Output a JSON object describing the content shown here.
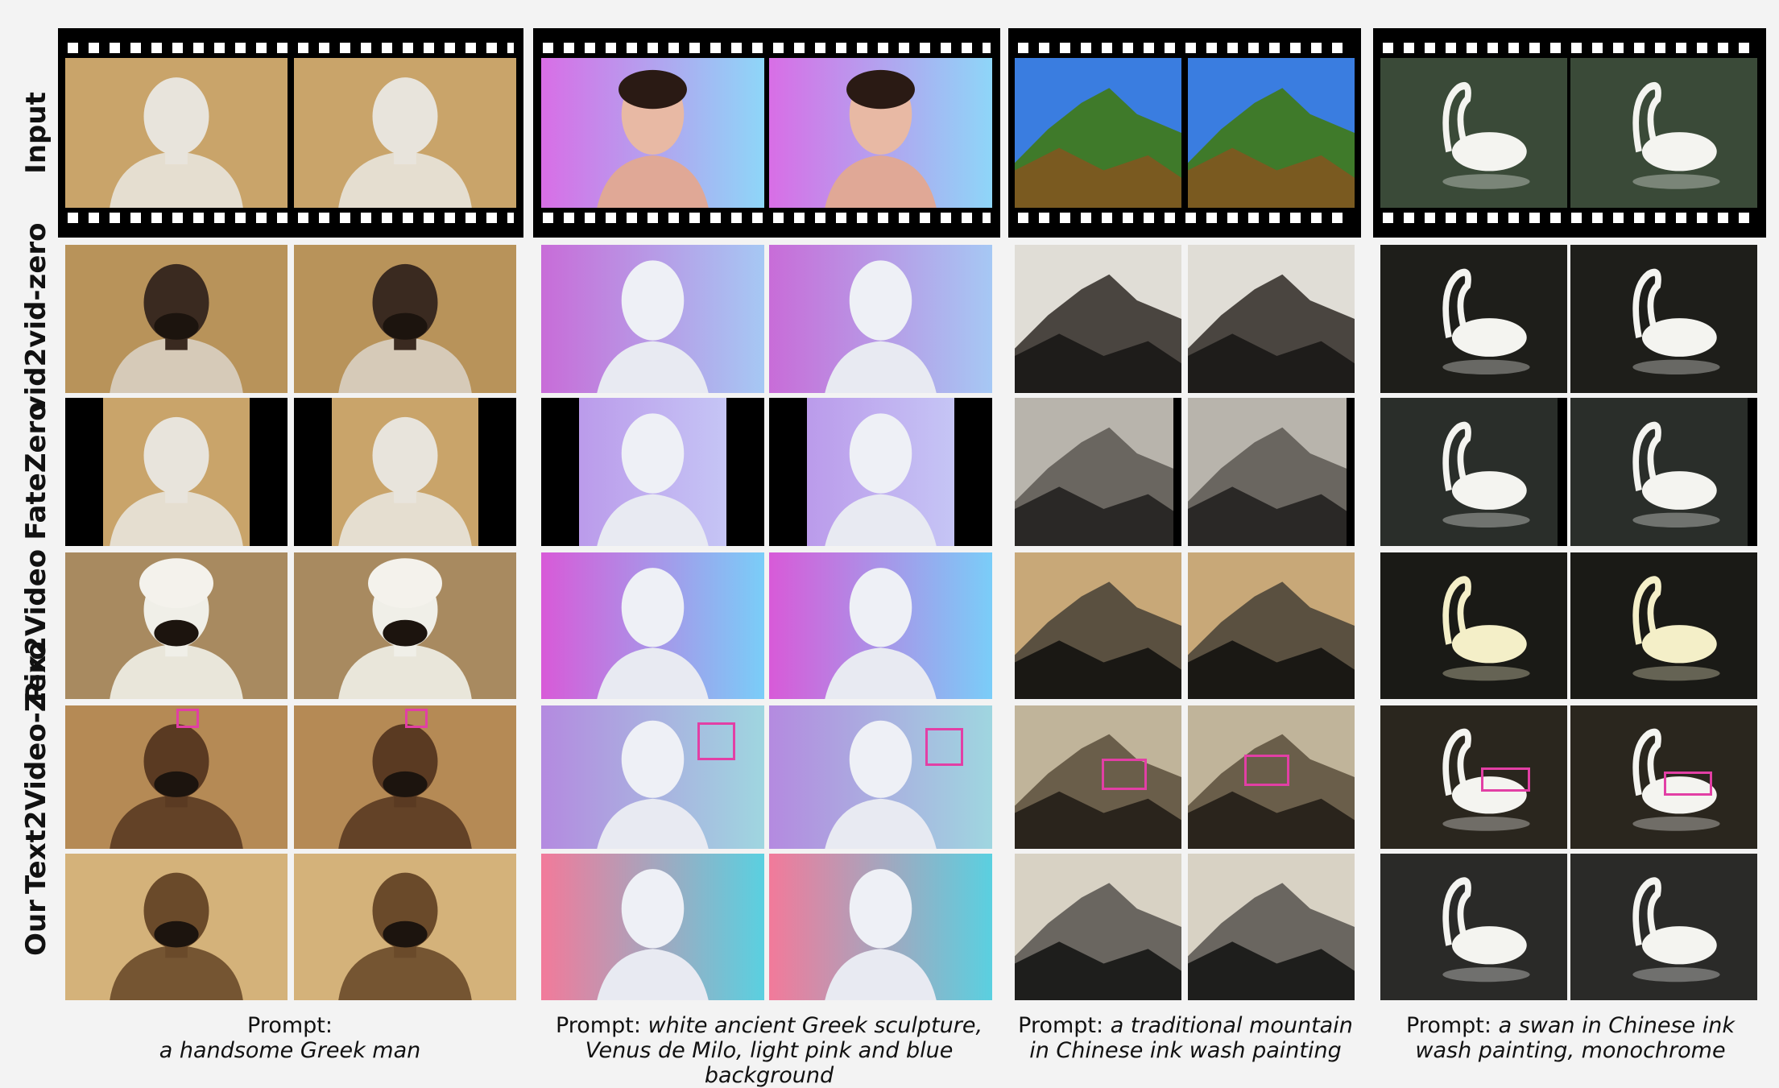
{
  "rows": [
    {
      "label": "Input"
    },
    {
      "label": "vid2vid-zero"
    },
    {
      "label": "FateZero"
    },
    {
      "label": "Pix2Video"
    },
    {
      "label": "Text2Video-Zero"
    },
    {
      "label": "Our"
    }
  ],
  "columns": [
    {
      "prompt_prefix": "Prompt:",
      "prompt_text": "a handsome Greek man",
      "subject": "greek-man"
    },
    {
      "prompt_prefix": "Prompt:",
      "prompt_text": "white ancient Greek sculpture, Venus de Milo, light pink and blue background",
      "subject": "venus"
    },
    {
      "prompt_prefix": "Prompt:",
      "prompt_text": "a traditional mountain in Chinese ink wash painting",
      "subject": "mountain"
    },
    {
      "prompt_prefix": "Prompt:",
      "prompt_text": "a swan in Chinese ink wash painting, monochrome",
      "subject": "swan"
    }
  ],
  "colors": {
    "highlight_box": "#e23fa5",
    "film": "#000000",
    "background": "#f3f3f3"
  }
}
